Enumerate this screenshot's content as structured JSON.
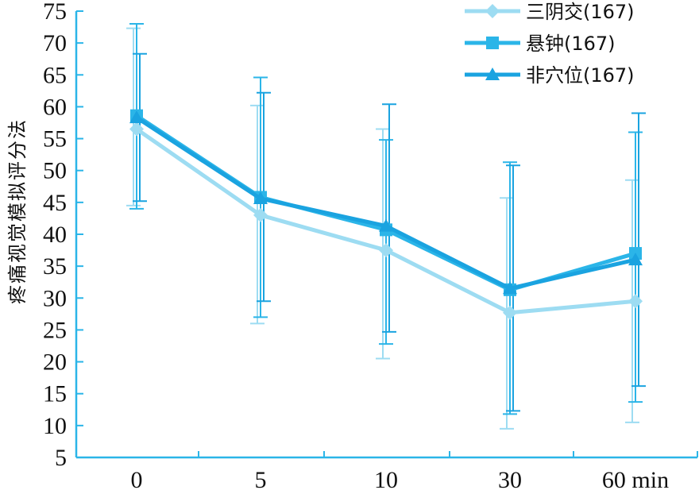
{
  "chart_data": {
    "type": "line",
    "title": "",
    "xlabel": "",
    "ylabel": "疼痛视觉模拟评分法",
    "categories": [
      "0",
      "5",
      "10",
      "30",
      "60 min"
    ],
    "ylim": [
      5,
      75
    ],
    "yticks": [
      5,
      10,
      15,
      20,
      25,
      30,
      35,
      40,
      45,
      50,
      55,
      60,
      65,
      70,
      75
    ],
    "grid": false,
    "legend_position": "top-right",
    "series": [
      {
        "name": "三阴交(167)",
        "marker": "diamond",
        "color": "#9ddcf2",
        "values": [
          56.5,
          43.0,
          37.5,
          27.7,
          29.5
        ],
        "error_low": [
          44.5,
          26.0,
          20.5,
          9.5,
          10.5
        ],
        "error_high": [
          72.3,
          60.2,
          56.5,
          45.7,
          48.5
        ]
      },
      {
        "name": "悬钟(167)",
        "marker": "square",
        "color": "#2bb5e8",
        "values": [
          58.6,
          45.8,
          40.7,
          31.3,
          37.0
        ],
        "error_low": [
          44.0,
          27.0,
          22.8,
          11.8,
          13.7
        ],
        "error_high": [
          73.0,
          64.6,
          54.8,
          51.3,
          56.0
        ]
      },
      {
        "name": "非穴位(167)",
        "marker": "triangle",
        "color": "#1aa3e0",
        "values": [
          58.3,
          45.6,
          41.3,
          31.5,
          36.0
        ],
        "error_low": [
          45.2,
          29.5,
          24.7,
          12.3,
          16.2
        ],
        "error_high": [
          68.3,
          62.2,
          60.4,
          50.8,
          59.0
        ]
      }
    ]
  }
}
